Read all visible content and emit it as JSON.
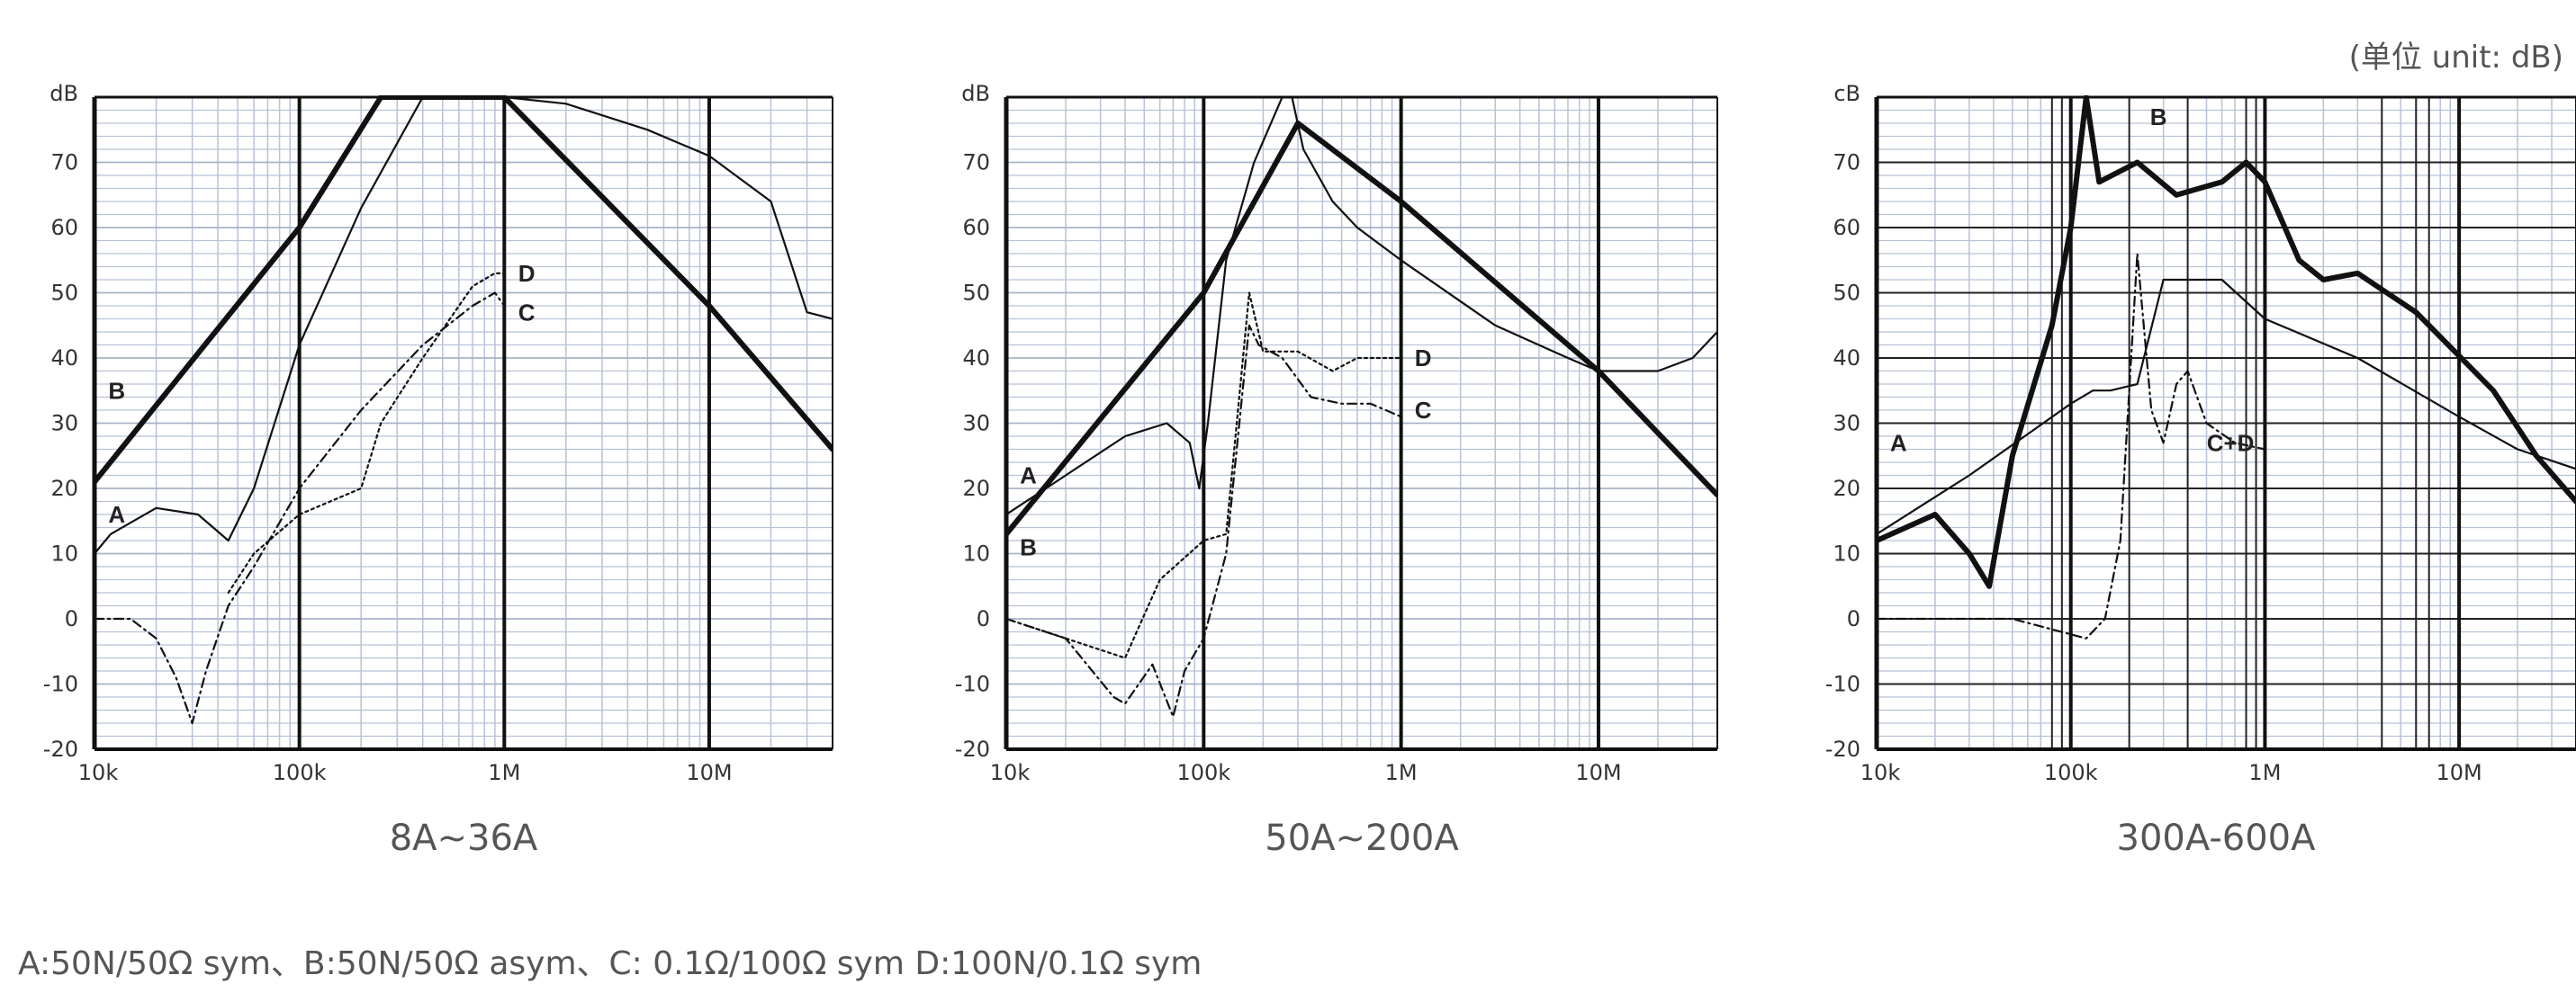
{
  "unit_note": "(单位 unit: dB)",
  "legend_text": "A:50N/50Ω sym、B:50N/50Ω asym、C: 0.1Ω/100Ω sym D:100N/0.1Ω sym",
  "colors": {
    "grid_fine": "#b8c2d8",
    "grid_major": "#111111",
    "curve": "#111111"
  },
  "chart_data": [
    {
      "type": "line",
      "title": "8A~36A",
      "ylabel": "dB",
      "xscale": "log",
      "xlim": [
        10000,
        40000000
      ],
      "ylim": [
        -20,
        80
      ],
      "x_ticks": [
        10000,
        100000,
        1000000,
        10000000
      ],
      "x_tick_labels": [
        "10k",
        "100k",
        "1M",
        "10M"
      ],
      "y_ticks": [
        -20,
        -10,
        0,
        10,
        20,
        30,
        40,
        50,
        60,
        70
      ],
      "y_tick_labels": [
        "-20",
        "-10",
        "0",
        "10",
        "20",
        "30",
        "40",
        "50",
        "60",
        "70"
      ],
      "top_label": "dB",
      "grid": true,
      "series": [
        {
          "name": "B",
          "style": "thick",
          "label_at": [
            11000,
            35
          ],
          "points": [
            [
              10000,
              21
            ],
            [
              100000,
              60
            ],
            [
              250000,
              80
            ],
            [
              1000000,
              80
            ],
            [
              10000000,
              48
            ],
            [
              40000000,
              26
            ]
          ]
        },
        {
          "name": "A",
          "style": "thin",
          "label_at": [
            11000,
            16
          ],
          "points": [
            [
              10000,
              10
            ],
            [
              12000,
              13
            ],
            [
              20000,
              17
            ],
            [
              32000,
              16
            ],
            [
              45000,
              12
            ],
            [
              60000,
              20
            ],
            [
              100000,
              42
            ],
            [
              200000,
              63
            ],
            [
              400000,
              80
            ],
            [
              1000000,
              80
            ],
            [
              2000000,
              79
            ],
            [
              5000000,
              75
            ],
            [
              10000000,
              71
            ],
            [
              20000000,
              64
            ],
            [
              30000000,
              47
            ],
            [
              40000000,
              46
            ]
          ]
        },
        {
          "name": "C",
          "style": "dashdot",
          "label_at": [
            1100000,
            47
          ],
          "points": [
            [
              10000,
              0
            ],
            [
              15000,
              0
            ],
            [
              20000,
              -3
            ],
            [
              25000,
              -9
            ],
            [
              30000,
              -16
            ],
            [
              35000,
              -8
            ],
            [
              45000,
              2
            ],
            [
              60000,
              8
            ],
            [
              100000,
              20
            ],
            [
              200000,
              32
            ],
            [
              400000,
              42
            ],
            [
              700000,
              48
            ],
            [
              900000,
              50
            ],
            [
              1000000,
              48
            ]
          ]
        },
        {
          "name": "D",
          "style": "dotted",
          "label_at": [
            1100000,
            53
          ],
          "points": [
            [
              45000,
              4
            ],
            [
              60000,
              10
            ],
            [
              100000,
              16
            ],
            [
              200000,
              20
            ],
            [
              250000,
              30
            ],
            [
              400000,
              40
            ],
            [
              700000,
              51
            ],
            [
              900000,
              53
            ],
            [
              1000000,
              53
            ]
          ]
        }
      ]
    },
    {
      "type": "line",
      "title": "50A~200A",
      "ylabel": "dB",
      "xscale": "log",
      "xlim": [
        10000,
        40000000
      ],
      "ylim": [
        -20,
        80
      ],
      "x_ticks": [
        10000,
        100000,
        1000000,
        10000000
      ],
      "x_tick_labels": [
        "10k",
        "100k",
        "1M",
        "10M"
      ],
      "y_ticks": [
        -20,
        -10,
        0,
        10,
        20,
        30,
        40,
        50,
        60,
        70
      ],
      "y_tick_labels": [
        "-20",
        "-10",
        "0",
        "10",
        "20",
        "30",
        "40",
        "50",
        "60",
        "70"
      ],
      "top_label": "dB",
      "grid": true,
      "series": [
        {
          "name": "B",
          "style": "thick",
          "label_at": [
            11000,
            11
          ],
          "points": [
            [
              10000,
              13
            ],
            [
              100000,
              50
            ],
            [
              300000,
              76
            ],
            [
              1000000,
              64
            ],
            [
              10000000,
              38
            ],
            [
              40000000,
              19
            ]
          ]
        },
        {
          "name": "A",
          "style": "thin",
          "label_at": [
            11000,
            22
          ],
          "points": [
            [
              10000,
              16
            ],
            [
              20000,
              22
            ],
            [
              40000,
              28
            ],
            [
              65000,
              30
            ],
            [
              85000,
              27
            ],
            [
              95000,
              20
            ],
            [
              105000,
              30
            ],
            [
              130000,
              55
            ],
            [
              180000,
              70
            ],
            [
              250000,
              80
            ],
            [
              280000,
              80
            ],
            [
              320000,
              72
            ],
            [
              450000,
              64
            ],
            [
              600000,
              60
            ],
            [
              1000000,
              55
            ],
            [
              3000000,
              45
            ],
            [
              7000000,
              40
            ],
            [
              10000000,
              38
            ],
            [
              20000000,
              38
            ],
            [
              30000000,
              40
            ],
            [
              40000000,
              44
            ]
          ]
        },
        {
          "name": "C",
          "style": "dashdot",
          "label_at": [
            1100000,
            32
          ],
          "points": [
            [
              10000,
              0
            ],
            [
              20000,
              -3
            ],
            [
              35000,
              -12
            ],
            [
              40000,
              -13
            ],
            [
              55000,
              -7
            ],
            [
              70000,
              -15
            ],
            [
              80000,
              -8
            ],
            [
              100000,
              -3
            ],
            [
              130000,
              10
            ],
            [
              170000,
              45
            ],
            [
              190000,
              42
            ],
            [
              250000,
              40
            ],
            [
              350000,
              34
            ],
            [
              500000,
              33
            ],
            [
              700000,
              33
            ],
            [
              1000000,
              31
            ]
          ]
        },
        {
          "name": "D",
          "style": "dotted",
          "label_at": [
            1100000,
            40
          ],
          "points": [
            [
              10000,
              0
            ],
            [
              40000,
              -6
            ],
            [
              60000,
              6
            ],
            [
              100000,
              12
            ],
            [
              130000,
              13
            ],
            [
              170000,
              50
            ],
            [
              200000,
              41
            ],
            [
              300000,
              41
            ],
            [
              450000,
              38
            ],
            [
              600000,
              40
            ],
            [
              1000000,
              40
            ]
          ]
        }
      ]
    },
    {
      "type": "line",
      "title": "300A-600A",
      "ylabel": "cB",
      "xscale": "log",
      "xlim": [
        10000,
        40000000
      ],
      "ylim": [
        -20,
        80
      ],
      "x_ticks": [
        10000,
        100000,
        1000000,
        10000000
      ],
      "x_tick_labels": [
        "10k",
        "100k",
        "1M",
        "10M"
      ],
      "y_ticks": [
        -20,
        -10,
        0,
        10,
        20,
        30,
        40,
        50,
        60,
        70
      ],
      "y_tick_labels": [
        "-20",
        "-10",
        "0",
        "10",
        "20",
        "30",
        "40",
        "50",
        "60",
        "70"
      ],
      "top_label": "cB",
      "grid": true,
      "extra_vlines": [
        80000,
        90000,
        200000,
        400000,
        800000,
        900000,
        4000000,
        6000000,
        7000000
      ],
      "series": [
        {
          "name": "B",
          "style": "thick",
          "label_at": [
            240000,
            77
          ],
          "points": [
            [
              10000,
              12
            ],
            [
              20000,
              16
            ],
            [
              30000,
              10
            ],
            [
              38000,
              5
            ],
            [
              50000,
              25
            ],
            [
              80000,
              45
            ],
            [
              100000,
              60
            ],
            [
              120000,
              80
            ],
            [
              140000,
              67
            ],
            [
              220000,
              70
            ],
            [
              350000,
              65
            ],
            [
              600000,
              67
            ],
            [
              800000,
              70
            ],
            [
              1000000,
              67
            ],
            [
              1500000,
              55
            ],
            [
              2000000,
              52
            ],
            [
              3000000,
              53
            ],
            [
              6000000,
              47
            ],
            [
              15000000,
              35
            ],
            [
              25000000,
              25
            ],
            [
              40000000,
              18
            ]
          ]
        },
        {
          "name": "A",
          "style": "thin",
          "label_at": [
            11000,
            27
          ],
          "points": [
            [
              10000,
              13
            ],
            [
              30000,
              22
            ],
            [
              100000,
              33
            ],
            [
              130000,
              35
            ],
            [
              160000,
              35
            ],
            [
              220000,
              36
            ],
            [
              300000,
              52
            ],
            [
              600000,
              52
            ],
            [
              1000000,
              46
            ],
            [
              3000000,
              40
            ],
            [
              10000000,
              31
            ],
            [
              20000000,
              26
            ],
            [
              40000000,
              23
            ]
          ]
        },
        {
          "name": "C+D",
          "style": "dashdot",
          "label_at": [
            470000,
            27
          ],
          "points": [
            [
              10000,
              0
            ],
            [
              50000,
              0
            ],
            [
              120000,
              -3
            ],
            [
              150000,
              0
            ],
            [
              180000,
              12
            ],
            [
              220000,
              56
            ],
            [
              260000,
              32
            ],
            [
              300000,
              27
            ],
            [
              350000,
              36
            ],
            [
              400000,
              38
            ],
            [
              500000,
              30
            ],
            [
              700000,
              27
            ],
            [
              1000000,
              26
            ]
          ]
        }
      ]
    }
  ]
}
